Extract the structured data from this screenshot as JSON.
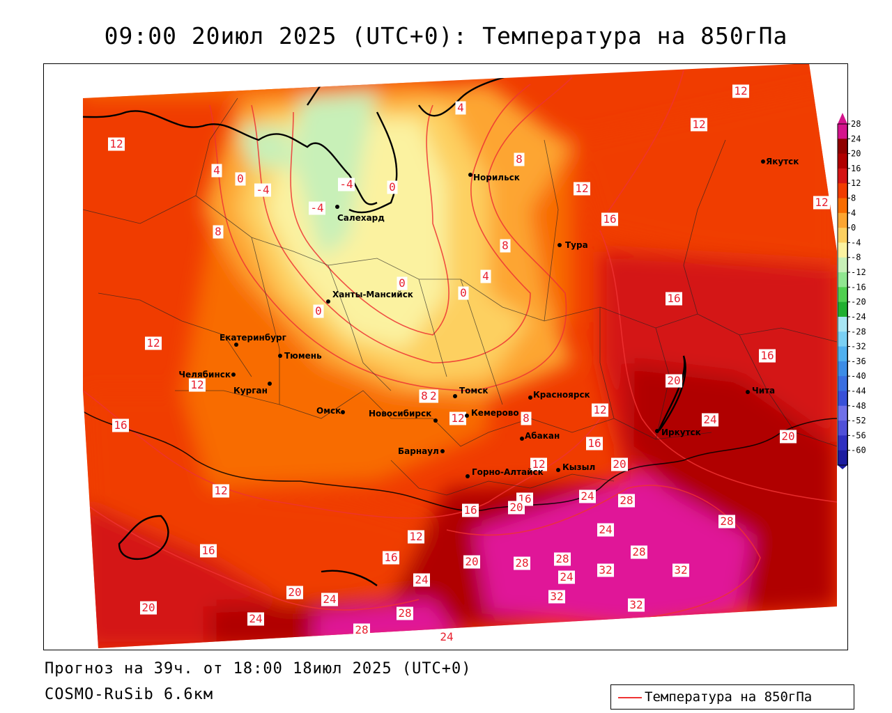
{
  "title": "09:00 20июл 2025 (UTC+0): Температура на 850гПа",
  "footer": {
    "forecast": "Прогноз на 39ч. от 18:00 18июл 2025 (UTC+0)",
    "model": "COSMO-RuSib 6.6км"
  },
  "legend": {
    "label": "Температура на 850гПа",
    "line_color": "#ee3333"
  },
  "scale": {
    "ticks": [
      "28",
      "24",
      "20",
      "16",
      "12",
      "8",
      "4",
      "0",
      "-4",
      "-8",
      "-12",
      "-16",
      "-20",
      "-24",
      "-28",
      "-32",
      "-36",
      "-40",
      "-44",
      "-48",
      "-52",
      "-56",
      "-60"
    ],
    "colors": [
      "#d4148c",
      "#8f0000",
      "#b00000",
      "#d41414",
      "#f03c00",
      "#f86c00",
      "#fda530",
      "#fdd060",
      "#fbf2a0",
      "#c8f0b8",
      "#90e690",
      "#50d050",
      "#20b030",
      "#a8e6f4",
      "#7ad0f4",
      "#50b0ef",
      "#3c8ce6",
      "#3a6ee0",
      "#3850d8",
      "#7070e8",
      "#5050d8",
      "#3030c0",
      "#1c1ca0"
    ]
  },
  "cities": [
    {
      "name": "Салехард"
    },
    {
      "name": "Норильск"
    },
    {
      "name": "Якутск"
    },
    {
      "name": "Тура"
    },
    {
      "name": "Ханты-Мансийск"
    },
    {
      "name": "Екатеринбург"
    },
    {
      "name": "Тюмень"
    },
    {
      "name": "Челябинск"
    },
    {
      "name": "Курган"
    },
    {
      "name": "Омск"
    },
    {
      "name": "Новосибирск"
    },
    {
      "name": "Томск"
    },
    {
      "name": "Кемерово"
    },
    {
      "name": "Красноярск"
    },
    {
      "name": "Абакан"
    },
    {
      "name": "Барнаул"
    },
    {
      "name": "Горно-Алтайск"
    },
    {
      "name": "Кызыл"
    },
    {
      "name": "Иркутск"
    },
    {
      "name": "Чита"
    }
  ],
  "isotherm_labels": [
    "12",
    "12",
    "12",
    "12",
    "12",
    "16",
    "16",
    "16",
    "16",
    "20",
    "24",
    "20",
    "8",
    "4",
    "4",
    "-4",
    "-4",
    "-4",
    "0",
    "0",
    "0",
    "0",
    "8",
    "4",
    "0",
    "12",
    "12",
    "16",
    "12",
    "12",
    "20",
    "24",
    "28",
    "28",
    "24",
    "28",
    "32",
    "32",
    "32",
    "32",
    "28",
    "24",
    "20",
    "24",
    "20",
    "24",
    "28",
    "28",
    "24",
    "16",
    "12",
    "16",
    "20",
    "24",
    "28",
    "8",
    "8",
    "12",
    "16",
    "20",
    "16",
    "12",
    "12",
    "8"
  ]
}
